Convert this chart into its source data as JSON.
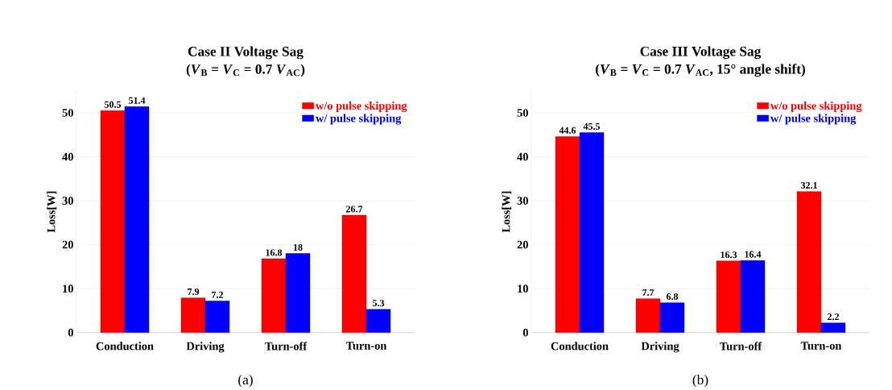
{
  "chart_data": [
    {
      "type": "bar",
      "title": "Case II Voltage Sag",
      "subtitle": "(*V*$_{B}$ = *V*$_{C}$ = 0.7 *V*$_{AC}$)",
      "ylabel": "Loss[W]",
      "categories": [
        "Conduction",
        "Driving",
        "Turn-off",
        "Turn-on"
      ],
      "series": [
        {
          "name": "w/o pulse skipping",
          "color": "#ff0000",
          "values": [
            50.5,
            7.9,
            16.8,
            26.7
          ],
          "value_labels": [
            "50.5",
            "7.9",
            "16.8",
            "26.7"
          ]
        },
        {
          "name": "w/ pulse skipping",
          "color": "#0000ff",
          "values": [
            51.4,
            7.2,
            18,
            5.3
          ],
          "value_labels": [
            "51.4",
            "7.2",
            "18",
            "5.3"
          ]
        }
      ],
      "ylim": [
        0,
        55
      ],
      "yticks": [
        0,
        10,
        20,
        30,
        40,
        50
      ],
      "grid": "y",
      "legend": "top right",
      "annotations": [
        "(a)"
      ]
    },
    {
      "type": "bar",
      "title": "Case III Voltage Sag",
      "subtitle": "(*V*$_{B}$ = *V*$_{C}$ = 0.7 *V*$_{AC}$, 15° angle shift)",
      "ylabel": "Loss[W]",
      "categories": [
        "Conduction",
        "Driving",
        "Turn-off",
        "Turn-on"
      ],
      "series": [
        {
          "name": "w/o pulse skipping",
          "color": "#ff0000",
          "values": [
            44.6,
            7.7,
            16.3,
            32.1
          ],
          "value_labels": [
            "44.6",
            "7.7",
            "16.3",
            "32.1"
          ]
        },
        {
          "name": "w/ pulse skipping",
          "color": "#0000ff",
          "values": [
            45.5,
            6.8,
            16.4,
            2.2
          ],
          "value_labels": [
            "45.5",
            "6.8",
            "16.4",
            "2.2"
          ]
        }
      ],
      "ylim": [
        0,
        55
      ],
      "yticks": [
        0,
        10,
        20,
        30,
        40,
        50
      ],
      "grid": "y",
      "legend": "top right",
      "annotations": [
        "(b)"
      ]
    }
  ]
}
